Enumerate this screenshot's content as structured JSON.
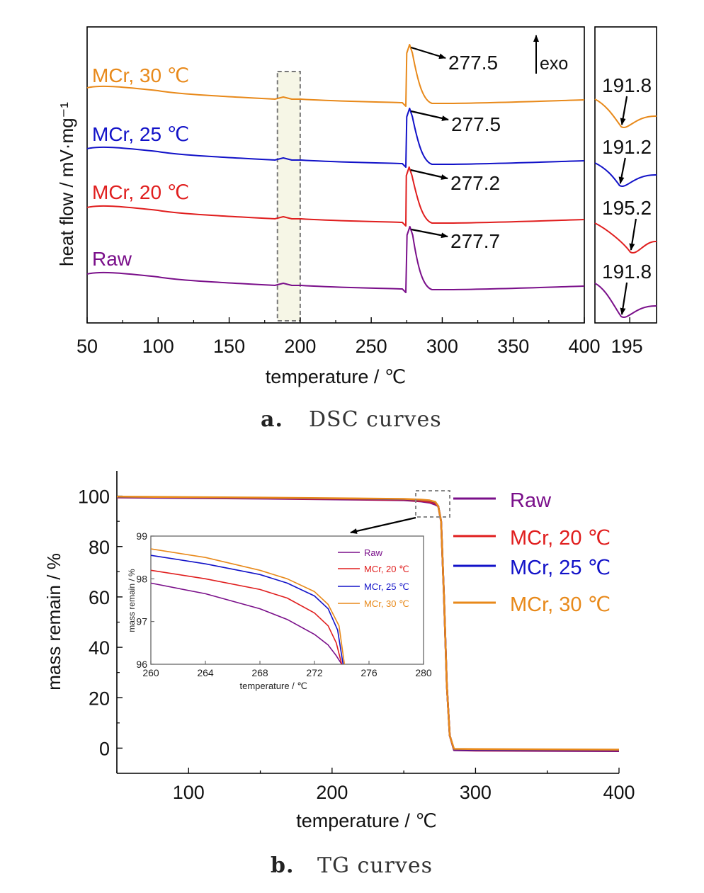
{
  "panels": [
    {
      "letter": "a.",
      "caption": "DSC curves"
    },
    {
      "letter": "b.",
      "caption": "TG curves"
    }
  ],
  "colors": {
    "Raw": "#7a0f8a",
    "MCr, 20 ℃": "#e01e1e",
    "MCr, 25 ℃": "#1212c8",
    "MCr, 30 ℃": "#e8891a"
  },
  "chart_data": [
    {
      "type": "line",
      "panel": "a",
      "xlabel": "temperature / ℃",
      "ylabel": "heat flow / mV·mg⁻¹",
      "xlim": [
        50,
        400
      ],
      "xticks": [
        "50",
        "100",
        "150",
        "200",
        "250",
        "300",
        "350",
        "400"
      ],
      "exo_label": "exo",
      "series": [
        {
          "name": "MCr, 30 ℃",
          "peak": "277.5",
          "peak_x": 277.5
        },
        {
          "name": "MCr, 25 ℃",
          "peak": "277.5",
          "peak_x": 277.5
        },
        {
          "name": "MCr, 20 ℃",
          "peak": "277.2",
          "peak_x": 277.2
        },
        {
          "name": "Raw",
          "peak": "277.7",
          "peak_x": 277.7
        }
      ],
      "highlight_range": [
        183,
        200
      ],
      "inset": {
        "xtick": "195",
        "xlim": [
          182,
          205
        ],
        "troughs": [
          {
            "name": "MCr, 30 ℃",
            "label": "191.8",
            "x": 191.8
          },
          {
            "name": "MCr, 25 ℃",
            "label": "191.2",
            "x": 191.2
          },
          {
            "name": "MCr, 20 ℃",
            "label": "195.2",
            "x": 195.2
          },
          {
            "name": "Raw",
            "label": "191.8",
            "x": 191.8
          }
        ]
      }
    },
    {
      "type": "line",
      "panel": "b",
      "xlabel": "temperature / ℃",
      "ylabel": "mass remain / %",
      "xlim": [
        50,
        400
      ],
      "ylim": [
        -10,
        110
      ],
      "xticks": [
        "100",
        "200",
        "300",
        "400"
      ],
      "yticks": [
        "0",
        "20",
        "40",
        "60",
        "80",
        "100"
      ],
      "legend": [
        "Raw",
        "MCr, 20 ℃",
        "MCr, 25 ℃",
        "MCr, 30 ℃"
      ],
      "series": [
        {
          "name": "Raw",
          "x": [
            50,
            150,
            250,
            262,
            268,
            272,
            274,
            276,
            278,
            280,
            282,
            285,
            300,
            400
          ],
          "y": [
            99.5,
            99.0,
            98.4,
            97.9,
            97.4,
            96.6,
            96.0,
            90,
            60,
            25,
            5,
            -0.8,
            -1.0,
            -1.2
          ]
        },
        {
          "name": "MCr, 20 ℃",
          "x": [
            50,
            150,
            250,
            262,
            268,
            272,
            274,
            276,
            278,
            280,
            282,
            285,
            300,
            400
          ],
          "y": [
            99.6,
            99.2,
            98.6,
            98.1,
            97.8,
            97.1,
            96.0,
            90,
            60,
            25,
            5,
            -0.6,
            -0.8,
            -1.0
          ]
        },
        {
          "name": "MCr, 25 ℃",
          "x": [
            50,
            150,
            250,
            262,
            268,
            272,
            274,
            276,
            278,
            280,
            282,
            285,
            300,
            400
          ],
          "y": [
            99.7,
            99.3,
            98.8,
            98.5,
            98.2,
            97.6,
            96.0,
            90,
            60,
            25,
            5,
            -0.5,
            -0.6,
            -0.8
          ]
        },
        {
          "name": "MCr, 30 ℃",
          "x": [
            50,
            150,
            250,
            262,
            268,
            272,
            274,
            276,
            278,
            280,
            282,
            285,
            300,
            400
          ],
          "y": [
            99.8,
            99.4,
            98.9,
            98.6,
            98.3,
            97.7,
            96.0,
            90,
            60,
            25,
            5,
            -0.3,
            -0.4,
            -0.6
          ]
        }
      ],
      "inset": {
        "xlabel": "temperature / ℃",
        "ylabel": "mass remain / %",
        "xlim": [
          260,
          280
        ],
        "ylim": [
          96,
          99
        ],
        "xticks": [
          "260",
          "264",
          "268",
          "272",
          "276",
          "280"
        ],
        "yticks": [
          "96",
          "97",
          "98",
          "99"
        ],
        "legend": [
          "Raw",
          "MCr, 20 ℃",
          "MCr, 25 ℃",
          "MCr, 30 ℃"
        ],
        "series": [
          {
            "name": "Raw",
            "x": [
              260,
              264,
              268,
              270,
              272,
              273,
              273.6,
              274
            ],
            "y": [
              97.9,
              97.65,
              97.3,
              97.05,
              96.7,
              96.45,
              96.2,
              96.0
            ]
          },
          {
            "name": "MCr, 20 ℃",
            "x": [
              260,
              264,
              268,
              270,
              272,
              273,
              273.6,
              274
            ],
            "y": [
              98.2,
              98.0,
              97.75,
              97.55,
              97.2,
              96.9,
              96.5,
              96.0
            ]
          },
          {
            "name": "MCr, 25 ℃",
            "x": [
              260,
              264,
              268,
              270,
              272,
              273,
              273.7,
              274.1
            ],
            "y": [
              98.55,
              98.35,
              98.1,
              97.9,
              97.6,
              97.3,
              96.8,
              96.0
            ]
          },
          {
            "name": "MCr, 30 ℃",
            "x": [
              260,
              264,
              268,
              270,
              272,
              273,
              273.8,
              274.2
            ],
            "y": [
              98.7,
              98.5,
              98.2,
              98.0,
              97.7,
              97.4,
              96.9,
              96.0
            ]
          }
        ]
      }
    }
  ]
}
